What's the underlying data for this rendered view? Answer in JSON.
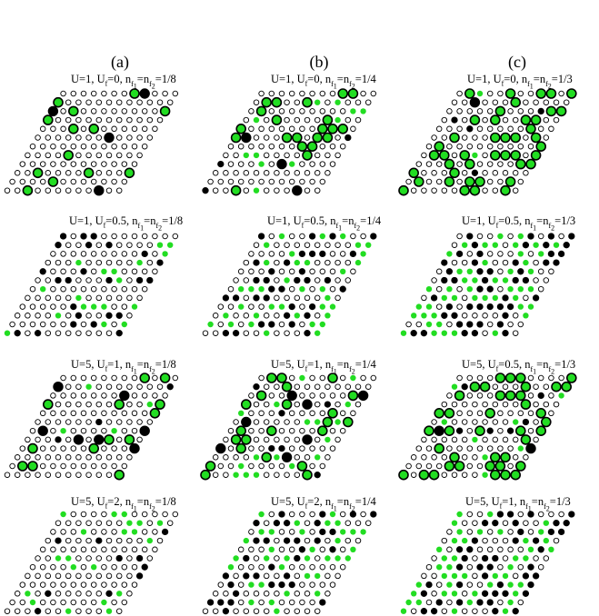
{
  "columns": [
    {
      "label": "(a)"
    },
    {
      "label": "(b)"
    },
    {
      "label": "(c)"
    }
  ],
  "rows": [
    {
      "panels": [
        {
          "U": "1",
          "Uf": "0",
          "nf": "1/8"
        },
        {
          "U": "1",
          "Uf": "0",
          "nf": "1/4"
        },
        {
          "U": "1",
          "Uf": "0",
          "nf": "1/3"
        }
      ]
    },
    {
      "panels": [
        {
          "U": "1",
          "Uf": "0.5",
          "nf": "1/8"
        },
        {
          "U": "1",
          "Uf": "0.5",
          "nf": "1/4"
        },
        {
          "U": "1",
          "Uf": "0.5",
          "nf": "1/3"
        }
      ]
    },
    {
      "panels": [
        {
          "U": "5",
          "Uf": "1",
          "nf": "1/8"
        },
        {
          "U": "5",
          "Uf": "1",
          "nf": "1/4"
        },
        {
          "U": "5",
          "Uf": "0.5",
          "nf": "1/3"
        }
      ]
    },
    {
      "panels": [
        {
          "U": "5",
          "Uf": "2",
          "nf": "1/8"
        },
        {
          "U": "5",
          "Uf": "2",
          "nf": "1/4"
        },
        {
          "U": "5",
          "Uf": "1",
          "nf": "1/3"
        }
      ]
    }
  ],
  "colors": {
    "site_open": "#ffffff",
    "site_stroke": "#000000",
    "site_black": "#000000",
    "site_green": "#22dd22"
  }
}
